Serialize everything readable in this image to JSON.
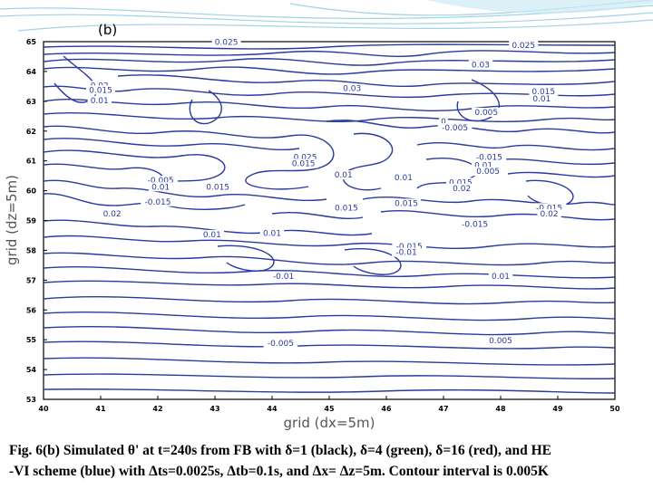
{
  "panel_label": "(b)",
  "caption": {
    "line1": "Fig. 6(b) Simulated θ' at t=240s from FB with δ=1 (black), δ=4 (green),  δ=16 (red),  and HE",
    "line2": "-VI scheme (blue) with Δts=0.0025s, Δtb=0.1s, and Δx= Δz=5m. Contour interval is 0.005K"
  },
  "colors": {
    "contour": "#2a3a9e",
    "contour_label": "#2a3a9e",
    "axis": "#000000",
    "decoration": "#9fd3e6"
  },
  "chart_data": {
    "type": "contour",
    "xlabel": "grid (dx=5m)",
    "ylabel": "grid (dz=5m)",
    "xlim": [
      40,
      50
    ],
    "ylim": [
      53,
      65
    ],
    "xticks": [
      "40",
      "41",
      "42",
      "43",
      "44",
      "45",
      "46",
      "47",
      "48",
      "49",
      "50"
    ],
    "yticks": [
      "53",
      "54",
      "55",
      "56",
      "57",
      "58",
      "59",
      "60",
      "61",
      "62",
      "63",
      "64",
      "65"
    ],
    "contour_interval": 0.005,
    "contour_labels": [
      {
        "text": "0.025",
        "x": 43.2,
        "y": 64.95
      },
      {
        "text": "0.025",
        "x": 48.4,
        "y": 64.85
      },
      {
        "text": "0.03",
        "x": 47.65,
        "y": 64.2
      },
      {
        "text": "0.02",
        "x": 40.98,
        "y": 63.5
      },
      {
        "text": "0.015",
        "x": 41.0,
        "y": 63.35
      },
      {
        "text": "0.01",
        "x": 40.98,
        "y": 63.0
      },
      {
        "text": "0.03",
        "x": 45.4,
        "y": 63.4
      },
      {
        "text": "0.015",
        "x": 48.75,
        "y": 63.3
      },
      {
        "text": "0.01",
        "x": 48.72,
        "y": 63.05
      },
      {
        "text": "0.005",
        "x": 47.75,
        "y": 62.6
      },
      {
        "text": "0",
        "x": 47.0,
        "y": 62.3
      },
      {
        "text": "-0.005",
        "x": 47.2,
        "y": 62.08
      },
      {
        "text": "0.025",
        "x": 44.58,
        "y": 61.1
      },
      {
        "text": "0.015",
        "x": 44.55,
        "y": 60.88
      },
      {
        "text": "0.01",
        "x": 45.25,
        "y": 60.5
      },
      {
        "text": "-0.015",
        "x": 47.8,
        "y": 61.1
      },
      {
        "text": "0.01",
        "x": 47.7,
        "y": 60.82
      },
      {
        "text": "0.005",
        "x": 47.78,
        "y": 60.62
      },
      {
        "text": "-0.005",
        "x": 42.05,
        "y": 60.32
      },
      {
        "text": "0.01",
        "x": 42.05,
        "y": 60.1
      },
      {
        "text": "0.015",
        "x": 43.05,
        "y": 60.1
      },
      {
        "text": "-0.015",
        "x": 42.0,
        "y": 59.6
      },
      {
        "text": "0.01",
        "x": 46.3,
        "y": 60.42
      },
      {
        "text": "0.015",
        "x": 47.3,
        "y": 60.25
      },
      {
        "text": "0.02",
        "x": 47.32,
        "y": 60.05
      },
      {
        "text": "0.015",
        "x": 45.3,
        "y": 59.4
      },
      {
        "text": "0.015",
        "x": 46.35,
        "y": 59.55
      },
      {
        "text": "-0.015",
        "x": 48.85,
        "y": 59.4
      },
      {
        "text": "0.02",
        "x": 48.85,
        "y": 59.2
      },
      {
        "text": "0.02",
        "x": 41.2,
        "y": 59.2
      },
      {
        "text": "-0.015",
        "x": 47.55,
        "y": 58.85
      },
      {
        "text": "0.01",
        "x": 42.95,
        "y": 58.5
      },
      {
        "text": "0.01",
        "x": 44.0,
        "y": 58.55
      },
      {
        "text": "-0.015",
        "x": 46.4,
        "y": 58.1
      },
      {
        "text": "-0.01",
        "x": 46.35,
        "y": 57.9
      },
      {
        "text": "-0.01",
        "x": 44.2,
        "y": 57.1
      },
      {
        "text": "0.01",
        "x": 48.0,
        "y": 57.1
      },
      {
        "text": "-0.005",
        "x": 44.15,
        "y": 54.85
      },
      {
        "text": "0.005",
        "x": 48.0,
        "y": 54.95
      }
    ]
  }
}
